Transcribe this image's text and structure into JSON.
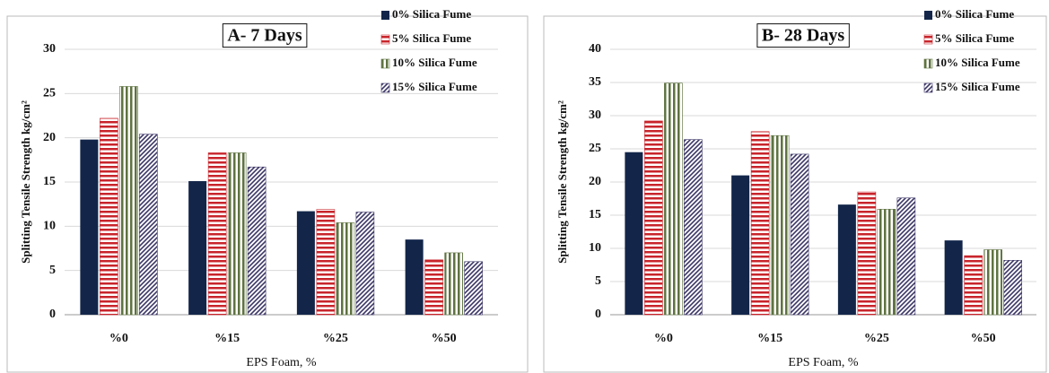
{
  "chart_data": [
    {
      "type": "bar",
      "title": "A- 7 Days",
      "x_label": "EPS Foam, %",
      "y_label": "Splitting Tensile Strength kg/cm²",
      "categories": [
        "%0",
        "%15",
        "%25",
        "%50"
      ],
      "series": [
        {
          "name": "0% Silica Fume",
          "color": "#13264a",
          "pattern": "solid",
          "values": [
            19.8,
            15.1,
            11.7,
            8.5
          ]
        },
        {
          "name": "5% Silica Fume",
          "color": "#c8242b",
          "pattern": "horizontal",
          "values": [
            22.2,
            18.3,
            11.9,
            6.2
          ]
        },
        {
          "name": "10% Silica Fume",
          "color": "#5f7340",
          "pattern": "vertical",
          "values": [
            25.8,
            18.3,
            10.4,
            7.0
          ]
        },
        {
          "name": "15% Silica Fume",
          "color": "#3b3566",
          "pattern": "diagonal",
          "values": [
            20.4,
            16.7,
            11.6,
            6.0
          ]
        }
      ],
      "ylim": [
        0,
        30
      ],
      "yticks": [
        0,
        5,
        10,
        15,
        20,
        25,
        30
      ],
      "grid": true
    },
    {
      "type": "bar",
      "title": "B- 28 Days",
      "x_label": "EPS Foam, %",
      "y_label": "Splitting Tensile Strength kg/cm²",
      "categories": [
        "%0",
        "%15",
        "%25",
        "%50"
      ],
      "series": [
        {
          "name": "0% Silica Fume",
          "color": "#13264a",
          "pattern": "solid",
          "values": [
            24.5,
            21.0,
            16.6,
            11.2
          ]
        },
        {
          "name": "5% Silica Fume",
          "color": "#c8242b",
          "pattern": "horizontal",
          "values": [
            29.2,
            27.6,
            18.5,
            8.9
          ]
        },
        {
          "name": "10% Silica Fume",
          "color": "#5f7340",
          "pattern": "vertical",
          "values": [
            34.9,
            27.0,
            15.9,
            9.8
          ]
        },
        {
          "name": "15% Silica Fume",
          "color": "#3b3566",
          "pattern": "diagonal",
          "values": [
            26.4,
            24.2,
            17.6,
            8.2
          ]
        }
      ],
      "ylim": [
        0,
        40
      ],
      "yticks": [
        0,
        5,
        10,
        15,
        20,
        25,
        30,
        35,
        40
      ],
      "grid": true
    }
  ]
}
